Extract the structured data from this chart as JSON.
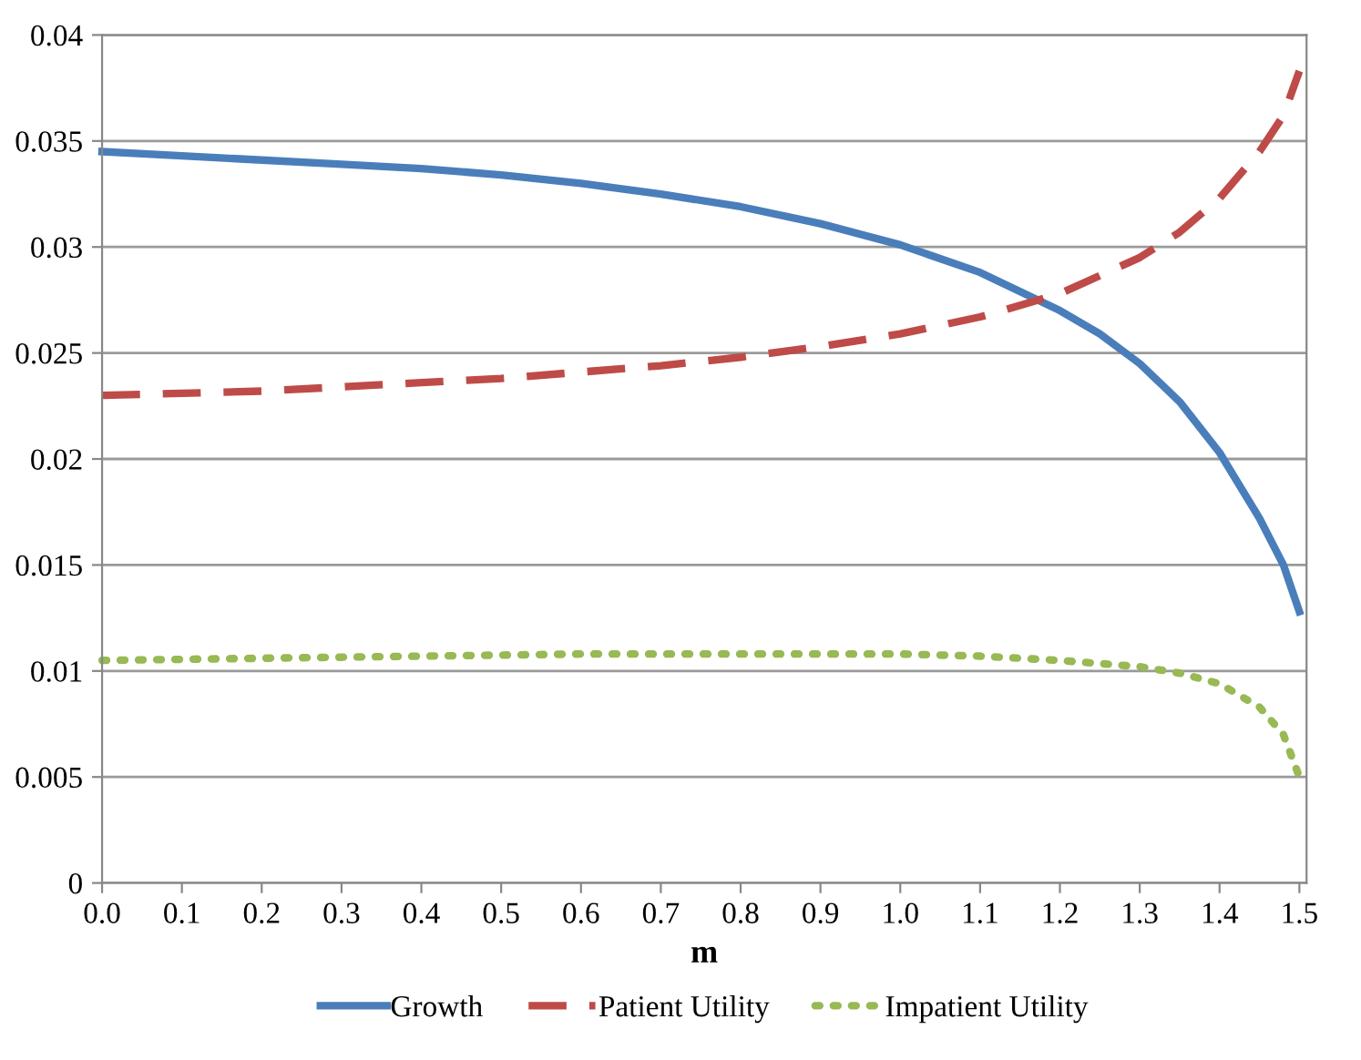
{
  "chart_data": {
    "type": "line",
    "xlabel": "m",
    "xlim": [
      0,
      1.509
    ],
    "xticks": [
      {
        "value": 0,
        "label": "0.0"
      },
      0.1,
      0.2,
      0.3,
      0.4,
      0.5,
      0.6,
      0.7,
      0.8,
      0.9,
      {
        "value": 1,
        "label": "1.0"
      },
      1.1,
      1.2,
      1.3,
      1.4,
      1.5
    ],
    "ylim": [
      0,
      0.04
    ],
    "yticks": [
      0,
      0.005,
      0.01,
      0.015,
      0.02,
      0.025,
      0.03,
      0.035,
      0.04
    ],
    "grid": "y",
    "legend": "bottom",
    "marker": "none",
    "series": [
      {
        "name": "Growth",
        "color": "#4a7ebb",
        "line_style": "solid",
        "x": [
          0,
          0.1,
          0.2,
          0.3,
          0.4,
          0.5,
          0.6,
          0.7,
          0.8,
          0.9,
          1.0,
          1.1,
          1.2,
          1.25,
          1.3,
          1.35,
          1.4,
          1.45,
          1.48,
          1.5
        ],
        "values": [
          0.0345,
          0.0343,
          0.0341,
          0.0339,
          0.0337,
          0.0334,
          0.033,
          0.0325,
          0.0319,
          0.0311,
          0.0301,
          0.0288,
          0.027,
          0.0259,
          0.0245,
          0.0227,
          0.0203,
          0.0172,
          0.015,
          0.0128
        ]
      },
      {
        "name": "Patient Utility",
        "color": "#be4b48",
        "line_style": "dashed",
        "x": [
          0,
          0.1,
          0.2,
          0.3,
          0.4,
          0.5,
          0.6,
          0.7,
          0.8,
          0.9,
          1.0,
          1.1,
          1.2,
          1.3,
          1.35,
          1.4,
          1.45,
          1.48,
          1.5
        ],
        "values": [
          0.023,
          0.0231,
          0.0232,
          0.0234,
          0.0236,
          0.0238,
          0.0241,
          0.0244,
          0.0248,
          0.0253,
          0.0259,
          0.0267,
          0.0278,
          0.0295,
          0.0307,
          0.0323,
          0.0345,
          0.0362,
          0.0383
        ]
      },
      {
        "name": "Impatient Utility",
        "color": "#98b954",
        "line_style": "dotted",
        "x": [
          0,
          0.2,
          0.4,
          0.6,
          0.8,
          0.9,
          1.0,
          1.1,
          1.2,
          1.3,
          1.35,
          1.4,
          1.45,
          1.48,
          1.5
        ],
        "values": [
          0.0105,
          0.0106,
          0.0107,
          0.0108,
          0.0108,
          0.0108,
          0.0108,
          0.0107,
          0.0105,
          0.0102,
          0.0099,
          0.0094,
          0.0083,
          0.007,
          0.005
        ]
      }
    ]
  }
}
